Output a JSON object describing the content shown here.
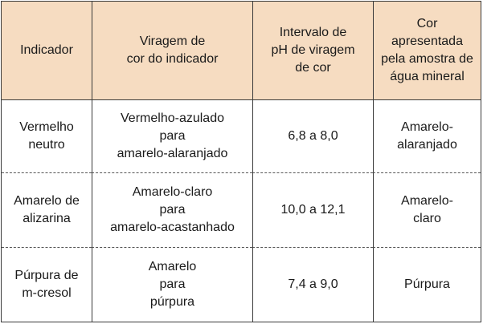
{
  "table": {
    "headers": [
      [
        "Indicador"
      ],
      [
        "Viragem de",
        "cor do indicador"
      ],
      [
        "Intervalo de",
        "pH de viragem",
        "de cor"
      ],
      [
        "Cor",
        "apresentada",
        "pela amostra de",
        "água mineral"
      ]
    ],
    "rows": [
      {
        "indicador": [
          "Vermelho",
          "neutro"
        ],
        "viragem": [
          "Vermelho-azulado",
          "para",
          "amarelo-alaranjado"
        ],
        "intervalo": "6,8 a 8,0",
        "cor": [
          "Amarelo-",
          "alaranjado"
        ]
      },
      {
        "indicador": [
          "Amarelo de",
          "alizarina"
        ],
        "viragem": [
          "Amarelo-claro",
          "para",
          "amarelo-acastanhado"
        ],
        "intervalo": "10,0 a 12,1",
        "cor": [
          "Amarelo-",
          "claro"
        ]
      },
      {
        "indicador": [
          "Púrpura de",
          "m-cresol"
        ],
        "viragem": [
          "Amarelo",
          "para",
          "púrpura"
        ],
        "intervalo": "7,4 a 9,0",
        "cor": [
          "Púrpura"
        ]
      }
    ],
    "colors": {
      "header_bg": "#f6dcc1",
      "border": "#3a3a3a"
    }
  }
}
